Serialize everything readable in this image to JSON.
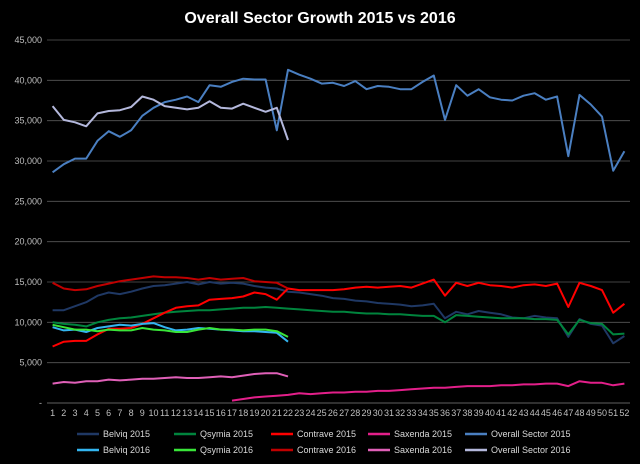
{
  "chart_data": {
    "type": "line",
    "title": "Overall Sector Growth 2015 vs 2016",
    "xlabel": "",
    "ylabel": "",
    "ylim": [
      0,
      45000
    ],
    "y_ticks": [
      "-",
      "5,000",
      "10,000",
      "15,000",
      "20,000",
      "25,000",
      "30,000",
      "35,000",
      "40,000",
      "45,000"
    ],
    "x": [
      1,
      2,
      3,
      4,
      5,
      6,
      7,
      8,
      9,
      10,
      11,
      12,
      13,
      14,
      15,
      16,
      17,
      18,
      19,
      20,
      21,
      22,
      23,
      24,
      25,
      26,
      27,
      28,
      29,
      30,
      31,
      32,
      33,
      34,
      35,
      36,
      37,
      38,
      39,
      40,
      41,
      42,
      43,
      44,
      45,
      46,
      47,
      48,
      49,
      50,
      51,
      52
    ],
    "grid": true,
    "legend_position": "bottom",
    "series": [
      {
        "name": "Belviq 2015",
        "color": "#1f3864",
        "values": [
          11500,
          11500,
          12000,
          12500,
          13300,
          13700,
          13500,
          13800,
          14200,
          14500,
          14600,
          14800,
          15000,
          14700,
          15000,
          14800,
          14900,
          14800,
          14500,
          14300,
          14200,
          13800,
          13700,
          13500,
          13300,
          13000,
          12900,
          12700,
          12600,
          12400,
          12300,
          12200,
          12000,
          12100,
          12300,
          10500,
          11300,
          11000,
          11400,
          11200,
          11000,
          10600,
          10500,
          10800,
          10600,
          10500,
          8200,
          10400,
          9800,
          9600,
          7400,
          8300
        ]
      },
      {
        "name": "Qsymia 2015",
        "color": "#00843d",
        "values": [
          10000,
          9800,
          9700,
          9500,
          10000,
          10300,
          10500,
          10600,
          10800,
          11000,
          11200,
          11300,
          11400,
          11500,
          11500,
          11600,
          11700,
          11800,
          11800,
          11900,
          11800,
          11700,
          11600,
          11500,
          11400,
          11300,
          11300,
          11200,
          11100,
          11100,
          11000,
          11000,
          10900,
          10800,
          10800,
          10000,
          10900,
          10800,
          10700,
          10600,
          10500,
          10500,
          10500,
          10400,
          10400,
          10300,
          8500,
          10300,
          9900,
          9800,
          8500,
          8600
        ]
      },
      {
        "name": "Contrave 2015",
        "color": "#ff0000",
        "values": [
          7000,
          7600,
          7700,
          7700,
          8500,
          9200,
          9200,
          9300,
          9800,
          10500,
          11200,
          11800,
          12000,
          12100,
          12800,
          12900,
          13000,
          13200,
          13700,
          13500,
          12800,
          14200,
          14000,
          14000,
          14000,
          14000,
          14100,
          14300,
          14400,
          14300,
          14400,
          14500,
          14300,
          14800,
          15300,
          13300,
          14900,
          14500,
          14900,
          14600,
          14500,
          14300,
          14600,
          14700,
          14500,
          14800,
          11900,
          14900,
          14500,
          14000,
          11200,
          12300
        ]
      },
      {
        "name": "Saxenda 2015",
        "color": "#e31f8a",
        "values": [
          null,
          null,
          null,
          null,
          null,
          null,
          null,
          null,
          null,
          null,
          null,
          null,
          null,
          null,
          null,
          null,
          300,
          500,
          700,
          800,
          900,
          1000,
          1200,
          1100,
          1200,
          1300,
          1300,
          1400,
          1400,
          1500,
          1500,
          1600,
          1700,
          1800,
          1900,
          1900,
          2000,
          2100,
          2100,
          2100,
          2200,
          2200,
          2300,
          2300,
          2400,
          2400,
          2100,
          2700,
          2500,
          2500,
          2200,
          2400
        ]
      },
      {
        "name": "Overall Sector 2015",
        "color": "#4a7fc1",
        "values": [
          28600,
          29600,
          30300,
          30300,
          32500,
          33700,
          33000,
          33800,
          35600,
          36600,
          37300,
          37600,
          38000,
          37300,
          39400,
          39200,
          39800,
          40200,
          40100,
          40100,
          33800,
          41300,
          40700,
          40200,
          39600,
          39700,
          39300,
          39900,
          38900,
          39300,
          39200,
          38900,
          38900,
          39800,
          40600,
          35100,
          39400,
          38100,
          38900,
          37900,
          37600,
          37500,
          38100,
          38400,
          37600,
          38000,
          30600,
          38200,
          37000,
          35500,
          28800,
          31200
        ]
      },
      {
        "name": "Belviq 2016",
        "color": "#33b5f0",
        "values": [
          9400,
          9000,
          9100,
          8800,
          9300,
          9500,
          9700,
          9600,
          9800,
          9900,
          9400,
          9000,
          9100,
          9300,
          9200,
          9100,
          9000,
          8900,
          8900,
          8800,
          8700,
          7600,
          null,
          null,
          null,
          null,
          null,
          null,
          null,
          null,
          null,
          null,
          null,
          null,
          null,
          null,
          null,
          null,
          null,
          null,
          null,
          null,
          null,
          null,
          null,
          null,
          null,
          null,
          null,
          null,
          null,
          null
        ]
      },
      {
        "name": "Qsymia 2016",
        "color": "#39e539",
        "values": [
          9700,
          9400,
          9100,
          9100,
          8900,
          9100,
          9000,
          9000,
          9300,
          9100,
          9000,
          8800,
          8800,
          9100,
          9300,
          9100,
          9100,
          9000,
          9100,
          9100,
          8900,
          8200,
          null,
          null,
          null,
          null,
          null,
          null,
          null,
          null,
          null,
          null,
          null,
          null,
          null,
          null,
          null,
          null,
          null,
          null,
          null,
          null,
          null,
          null,
          null,
          null,
          null,
          null,
          null,
          null,
          null,
          null
        ]
      },
      {
        "name": "Contrave 2016",
        "color": "#c00000",
        "values": [
          14900,
          14200,
          14000,
          14100,
          14500,
          14800,
          15100,
          15300,
          15500,
          15700,
          15600,
          15600,
          15500,
          15300,
          15500,
          15300,
          15400,
          15500,
          15100,
          15000,
          14900,
          14200,
          null,
          null,
          null,
          null,
          null,
          null,
          null,
          null,
          null,
          null,
          null,
          null,
          null,
          null,
          null,
          null,
          null,
          null,
          null,
          null,
          null,
          null,
          null,
          null,
          null,
          null,
          null,
          null,
          null,
          null
        ]
      },
      {
        "name": "Saxenda 2016",
        "color": "#e060b8",
        "values": [
          2400,
          2600,
          2500,
          2700,
          2700,
          2900,
          2800,
          2900,
          3000,
          3000,
          3100,
          3200,
          3100,
          3100,
          3200,
          3300,
          3200,
          3400,
          3600,
          3700,
          3700,
          3300,
          null,
          null,
          null,
          null,
          null,
          null,
          null,
          null,
          null,
          null,
          null,
          null,
          null,
          null,
          null,
          null,
          null,
          null,
          null,
          null,
          null,
          null,
          null,
          null,
          null,
          null,
          null,
          null,
          null,
          null
        ]
      },
      {
        "name": "Overall Sector 2016",
        "color": "#b4b8dc",
        "values": [
          36800,
          35100,
          34800,
          34300,
          35900,
          36200,
          36300,
          36700,
          38000,
          37600,
          36800,
          36600,
          36400,
          36600,
          37400,
          36600,
          36500,
          37100,
          36600,
          36100,
          36600,
          32600,
          null,
          null,
          null,
          null,
          null,
          null,
          null,
          null,
          null,
          null,
          null,
          null,
          null,
          null,
          null,
          null,
          null,
          null,
          null,
          null,
          null,
          null,
          null,
          null,
          null,
          null,
          null,
          null,
          null,
          null
        ]
      }
    ]
  }
}
